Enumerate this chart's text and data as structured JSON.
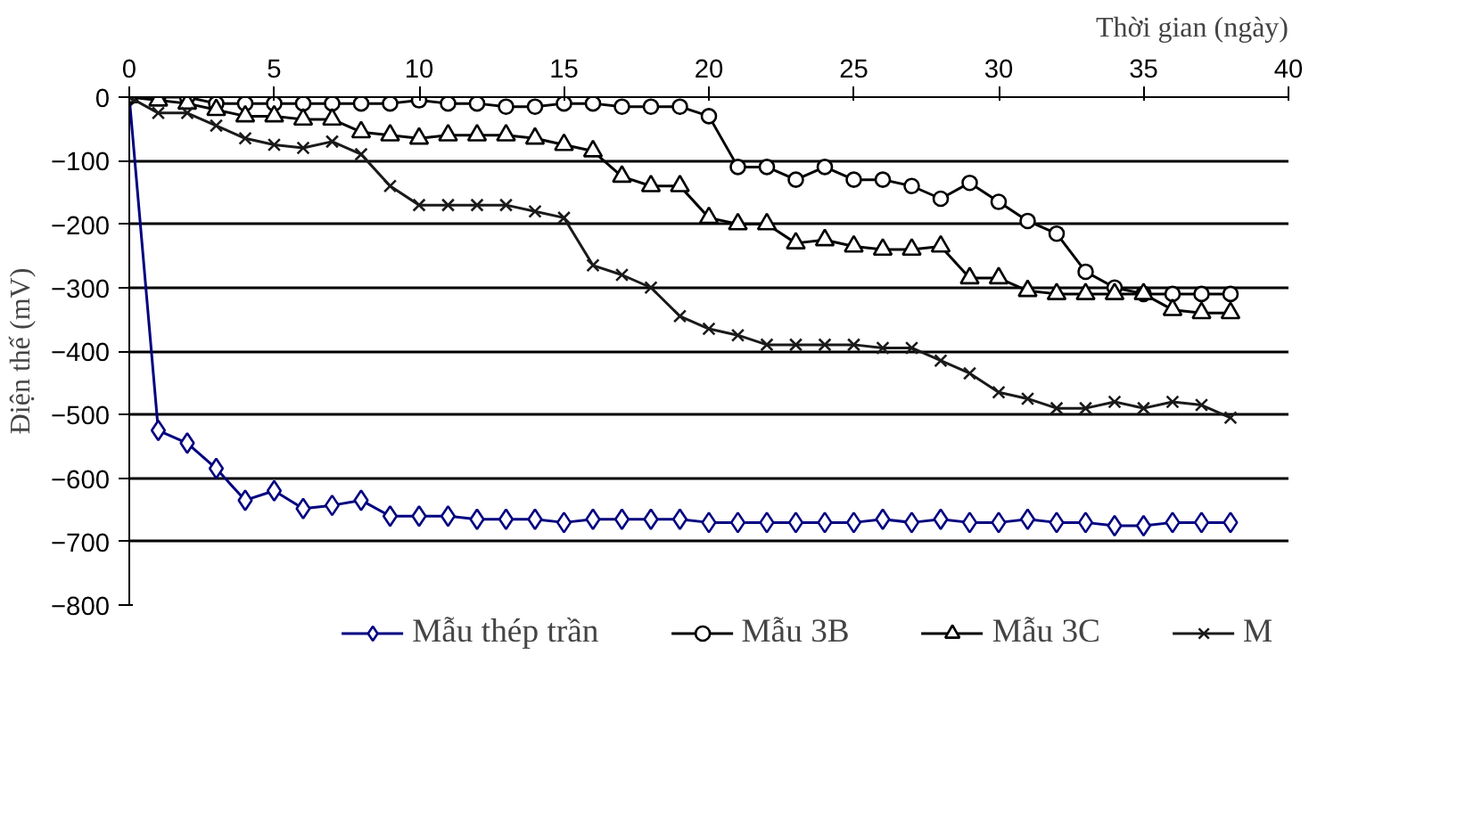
{
  "chart_data": {
    "type": "line",
    "xlabel": "Thời gian (ngày)",
    "ylabel": "Điện thế (mV)",
    "x": [
      0,
      1,
      2,
      3,
      4,
      5,
      6,
      7,
      8,
      9,
      10,
      11,
      12,
      13,
      14,
      15,
      16,
      17,
      18,
      19,
      20,
      21,
      22,
      23,
      24,
      25,
      26,
      27,
      28,
      29,
      30,
      31,
      32,
      33,
      34,
      35,
      36,
      37,
      38
    ],
    "xlim": [
      0,
      40
    ],
    "xticks": [
      0,
      5,
      10,
      15,
      20,
      25,
      30,
      35,
      40
    ],
    "ylim": [
      -800,
      0
    ],
    "yticks": [
      -800,
      -700,
      -600,
      -500,
      -400,
      -300,
      -200,
      -100,
      0
    ],
    "grid": "y",
    "legend": "bottom",
    "line_style": "solid",
    "series": [
      {
        "name": "Mẫu thép trần",
        "color": "#000080",
        "marker": "diamond",
        "values": [
          0,
          -525,
          -545,
          -585,
          -635,
          -620,
          -648,
          -643,
          -635,
          -660,
          -660,
          -660,
          -665,
          -665,
          -665,
          -670,
          -665,
          -665,
          -665,
          -665,
          -670,
          -670,
          -670,
          -670,
          -670,
          -670,
          -665,
          -670,
          -665,
          -670,
          -670,
          -665,
          -670,
          -670,
          -675,
          -675,
          -670,
          -670,
          -670
        ]
      },
      {
        "name": "Mẫu 3B",
        "color": "#000000",
        "marker": "circle",
        "values": [
          0,
          0,
          0,
          -10,
          -10,
          -10,
          -10,
          -10,
          -10,
          -10,
          -5,
          -10,
          -10,
          -15,
          -15,
          -10,
          -10,
          -15,
          -15,
          -15,
          -30,
          -110,
          -110,
          -130,
          -110,
          -130,
          -130,
          -140,
          -160,
          -135,
          -165,
          -195,
          -215,
          -275,
          -300,
          -310,
          -310,
          -310,
          -310
        ]
      },
      {
        "name": "Mẫu 3C",
        "color": "#000000",
        "marker": "triangle",
        "values": [
          0,
          -5,
          -10,
          -20,
          -30,
          -30,
          -35,
          -35,
          -55,
          -60,
          -65,
          -60,
          -60,
          -60,
          -65,
          -75,
          -85,
          -125,
          -140,
          -140,
          -190,
          -200,
          -200,
          -230,
          -225,
          -235,
          -240,
          -240,
          -235,
          -285,
          -285,
          -305,
          -310,
          -310,
          -310,
          -310,
          -335,
          -340,
          -340
        ]
      },
      {
        "name": "M",
        "color": "#1a1a1a",
        "marker": "cross",
        "values": [
          0,
          -25,
          -25,
          -45,
          -65,
          -75,
          -80,
          -70,
          -90,
          -140,
          -170,
          -170,
          -170,
          -170,
          -180,
          -190,
          -265,
          -280,
          -300,
          -345,
          -365,
          -375,
          -390,
          -390,
          -390,
          -390,
          -395,
          -395,
          -415,
          -435,
          -465,
          -475,
          -490,
          -490,
          -480,
          -490,
          -480,
          -485,
          -505
        ]
      }
    ]
  }
}
